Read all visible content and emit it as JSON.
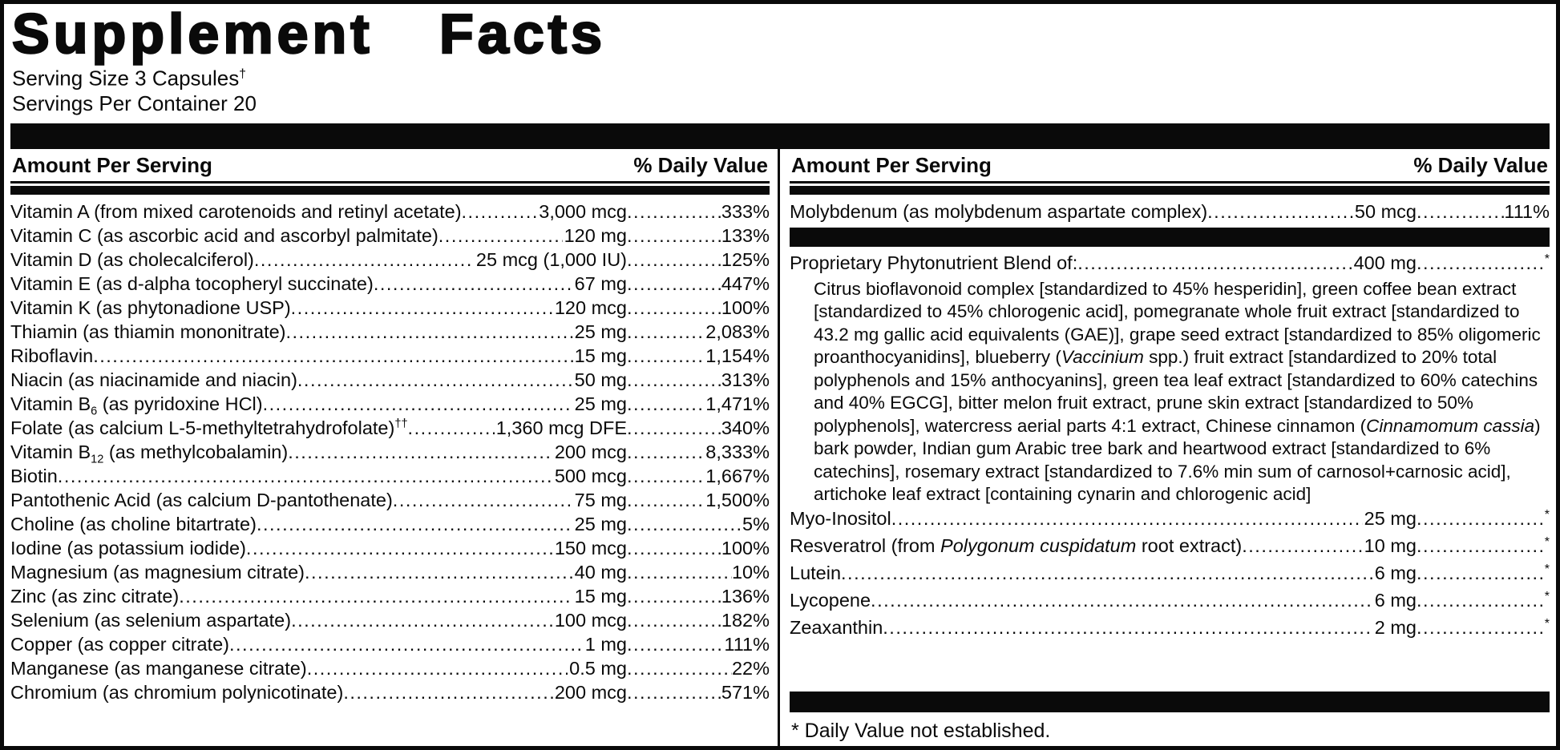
{
  "label": {
    "title": "Supplement Facts",
    "serving_size": "Serving Size 3 Capsules",
    "serving_size_mark": "†",
    "servings_per_container": "Servings Per Container 20"
  },
  "column_header": {
    "amount_label": "Amount Per Serving",
    "dv_label": "% Daily Value"
  },
  "colors": {
    "ink": "#0a0a0a",
    "background": "#ffffff"
  },
  "left_column": {
    "rows": [
      {
        "name": "Vitamin A (from mixed carotenoids and retinyl acetate)",
        "amount": "3,000 mcg",
        "dv": "333%"
      },
      {
        "name": "Vitamin C (as ascorbic acid and ascorbyl palmitate)",
        "amount": "120 mg",
        "dv": "133%"
      },
      {
        "name": "Vitamin D (as cholecalciferol)",
        "amount": "25 mcg (1,000 IU)",
        "dv": "125%"
      },
      {
        "name": "Vitamin E (as d-alpha tocopheryl succinate)",
        "amount": "67 mg",
        "dv": "447%"
      },
      {
        "name": "Vitamin K (as phytonadione USP)",
        "amount": "120 mcg",
        "dv": "100%"
      },
      {
        "name": "Thiamin (as thiamin mononitrate)",
        "amount": "25 mg",
        "dv": "2,083%"
      },
      {
        "name": "Riboflavin",
        "amount": "15 mg",
        "dv": "1,154%"
      },
      {
        "name": "Niacin (as niacinamide and niacin)",
        "amount": "50 mg",
        "dv": "313%"
      },
      {
        "name_segments": [
          {
            "text": "Vitamin B"
          },
          {
            "text": "6",
            "sub": true
          },
          {
            "text": " (as pyridoxine HCl)"
          }
        ],
        "amount": "25 mg",
        "dv": "1,471%"
      },
      {
        "name_segments": [
          {
            "text": "Folate (as calcium L-5-methyltetrahydrofolate)"
          },
          {
            "text": "††",
            "sup": true
          }
        ],
        "amount": "1,360 mcg DFE",
        "dv": "340%"
      },
      {
        "name_segments": [
          {
            "text": "Vitamin B"
          },
          {
            "text": "12",
            "sub": true
          },
          {
            "text": " (as methylcobalamin)"
          }
        ],
        "amount": "200 mcg",
        "dv": "8,333%"
      },
      {
        "name": "Biotin",
        "amount": "500 mcg",
        "dv": "1,667%"
      },
      {
        "name": "Pantothenic Acid (as calcium D-pantothenate)",
        "amount": "75 mg",
        "dv": "1,500%"
      },
      {
        "name": "Choline (as choline bitartrate)",
        "amount": "25 mg",
        "dv": "5%"
      },
      {
        "name": "Iodine (as potassium iodide)",
        "amount": "150 mcg",
        "dv": "100%"
      },
      {
        "name": "Magnesium (as magnesium citrate)",
        "amount": "40 mg",
        "dv": "10%"
      },
      {
        "name": "Zinc (as zinc citrate)",
        "amount": "15 mg",
        "dv": "136%"
      },
      {
        "name": "Selenium (as selenium aspartate)",
        "amount": "100 mcg",
        "dv": "182%"
      },
      {
        "name": "Copper (as copper citrate)",
        "amount": "1 mg",
        "dv": "111%"
      },
      {
        "name": "Manganese (as manganese citrate)",
        "amount": "0.5 mg",
        "dv": "22%"
      },
      {
        "name": "Chromium (as chromium polynicotinate)",
        "amount": "200 mcg",
        "dv": "571%"
      }
    ]
  },
  "right_column": {
    "top_rows": [
      {
        "name": "Molybdenum (as molybdenum aspartate complex)",
        "amount": "50 mcg",
        "dv": "111%"
      }
    ],
    "blend_rows": [
      {
        "name": "Proprietary Phytonutrient Blend of:",
        "amount": "400 mg",
        "dv": "*"
      }
    ],
    "blend_description_segments": [
      {
        "text": "Citrus bioflavonoid complex [standardized to 45% hesperidin], green coffee bean extract [standardized to 45% chlorogenic acid], pomegranate whole fruit extract [standardized to 43.2 mg gallic acid equivalents (GAE)], grape seed extract [standardized to 85% oligomeric proanthocyanidins], blueberry ("
      },
      {
        "text": "Vaccinium",
        "italic": true
      },
      {
        "text": " spp.) fruit extract [standardized to 20% total polyphenols and 15% anthocyanins], green tea leaf extract [standardized to 60% catechins and 40% EGCG], bitter melon fruit extract, prune skin extract [standardized to 50% polyphenols], watercress aerial parts 4:1 extract, Chinese cinnamon ("
      },
      {
        "text": "Cinnamomum cassia",
        "italic": true
      },
      {
        "text": ") bark powder, Indian gum Arabic tree bark and heartwood extract [standardized to 6% catechins], rosemary extract [standardized to 7.6% min sum of carnosol+carnosic acid], artichoke leaf extract [containing cynarin and chlorogenic acid]"
      }
    ],
    "bottom_rows": [
      {
        "name": "Myo-Inositol",
        "amount": "25 mg",
        "dv": "*"
      },
      {
        "name_segments": [
          {
            "text": "Resveratrol (from "
          },
          {
            "text": "Polygonum cuspidatum",
            "italic": true
          },
          {
            "text": " root extract)"
          }
        ],
        "amount": "10 mg",
        "dv": "*"
      },
      {
        "name": "Lutein",
        "amount": "6 mg",
        "dv": "*"
      },
      {
        "name": "Lycopene",
        "amount": "6 mg",
        "dv": "*"
      },
      {
        "name": "Zeaxanthin",
        "amount": "2 mg",
        "dv": "*"
      }
    ],
    "footnote": "* Daily Value not established."
  }
}
